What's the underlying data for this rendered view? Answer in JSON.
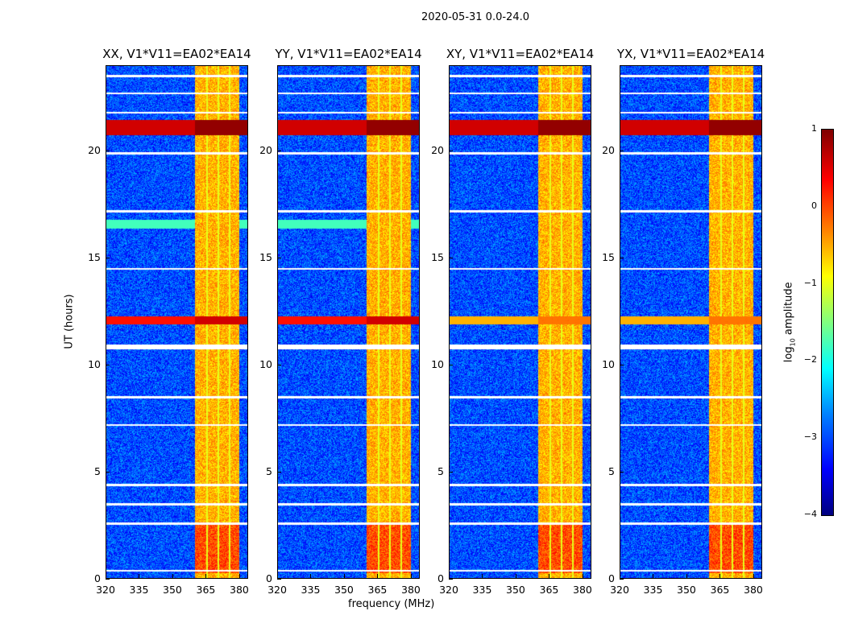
{
  "chart_data": {
    "type": "heatmap",
    "title": "2020-05-31 0.0-24.0",
    "xlabel": "frequency (MHz)",
    "ylabel": "UT (hours)",
    "xlim": [
      320,
      384
    ],
    "ylim": [
      0,
      24
    ],
    "xticks": [
      "320",
      "335",
      "350",
      "365",
      "380"
    ],
    "xtick_values": [
      320,
      335,
      350,
      365,
      380
    ],
    "yticks": [
      "0",
      "5",
      "10",
      "15",
      "20"
    ],
    "ytick_values": [
      0,
      5,
      10,
      15,
      20
    ],
    "panels": [
      {
        "title": "XX, V1*V11=EA02*EA14",
        "show_xlabel": false
      },
      {
        "title": "YY, V1*V11=EA02*EA14",
        "show_xlabel": true
      },
      {
        "title": "XY, V1*V11=EA02*EA14",
        "show_xlabel": false
      },
      {
        "title": "YX, V1*V11=EA02*EA14",
        "show_xlabel": false
      }
    ],
    "features": {
      "background_log10_amplitude": -3,
      "strong_band_mhz": [
        360,
        380
      ],
      "strong_band_log10_amplitude": -0.5,
      "band_gaps_mhz": [
        365.5,
        370.5,
        375.5
      ],
      "rfi_events_hours": [
        {
          "t": 21.1,
          "log10": 0.9
        },
        {
          "t": 12.1,
          "log10": 0.6
        },
        {
          "t": 16.6,
          "log10": -1.8
        }
      ],
      "flagged_hours": [
        0.4,
        2.6,
        3.5,
        4.4,
        7.2,
        8.5,
        10.8,
        14.5,
        17.2,
        19.9,
        21.8,
        22.7,
        23.5
      ]
    },
    "colorbar": {
      "label": "log10 amplitude",
      "ticks": [
        "1",
        "0",
        "−1",
        "−2",
        "−3",
        "−4"
      ],
      "tick_values": [
        1,
        0,
        -1,
        -2,
        -3,
        -4
      ],
      "colormap": "jet"
    }
  }
}
